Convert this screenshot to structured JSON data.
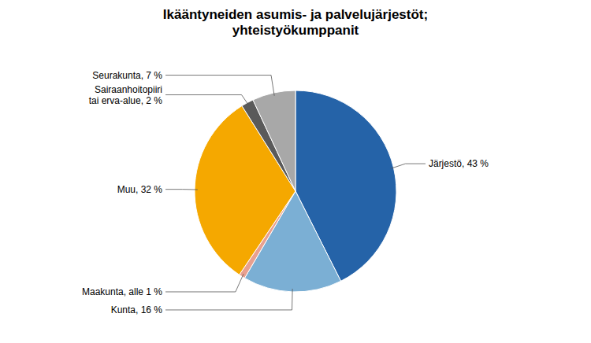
{
  "chart_data": {
    "type": "pie",
    "title": "Ikääntyneiden asumis- ja palvelujärjestöt;\nyhteistyökumppanit",
    "categories": [
      "Järjestö, 43 %",
      "Kunta, 16 %",
      "Maakunta, alle 1 %",
      "Muu, 32 %",
      "Sairaanhoitopiiri\ntai erva-alue, 2 %",
      "Seurakunta, 7 %"
    ],
    "values": [
      43,
      16,
      1,
      32,
      2,
      7
    ],
    "colors": [
      "#2563A8",
      "#7BAFD4",
      "#E8A090",
      "#F5A800",
      "#5A5A5A",
      "#A8A8A8"
    ]
  }
}
